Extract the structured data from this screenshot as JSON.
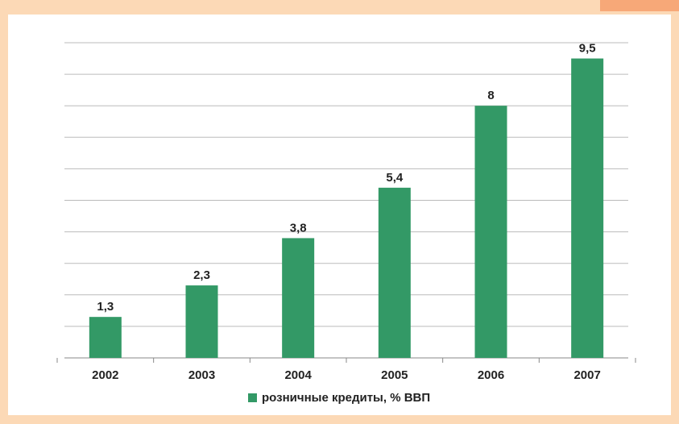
{
  "chart_data": {
    "type": "bar",
    "categories": [
      "2002",
      "2003",
      "2004",
      "2005",
      "2006",
      "2007"
    ],
    "series": [
      {
        "name": "розничные кредиты, % ВВП",
        "color": "#339966",
        "values": [
          1.3,
          2.3,
          3.8,
          5.4,
          8,
          9.5
        ],
        "value_labels": [
          "1,3",
          "2,3",
          "3,8",
          "5,4",
          "8",
          "9,5"
        ]
      }
    ],
    "ylim": [
      0,
      10
    ],
    "yticks": [
      0,
      1,
      2,
      3,
      4,
      5,
      6,
      7,
      8,
      9,
      10
    ],
    "grid": true,
    "legend": "bottom"
  }
}
